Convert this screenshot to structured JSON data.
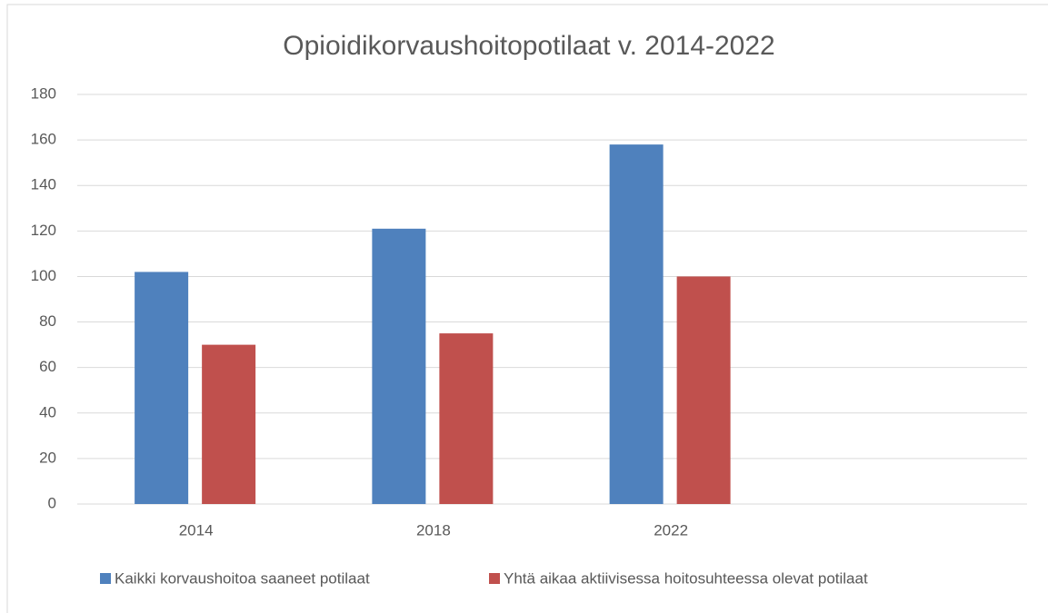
{
  "chart_data": {
    "type": "bar",
    "title": "Opioidikorvaushoitopotilaat v. 2014-2022",
    "categories": [
      "2014",
      "2018",
      "2022",
      null
    ],
    "series": [
      {
        "name": "Kaikki korvaushoitoa saaneet potilaat",
        "color": "#4f81bd",
        "values": [
          102,
          121,
          158,
          null
        ]
      },
      {
        "name": "Yhtä aikaa aktiivisessa hoitosuhteessa olevat potilaat",
        "color": "#c0504d",
        "values": [
          70,
          75,
          100,
          null
        ]
      }
    ],
    "ylim": [
      0,
      180
    ],
    "yticks": [
      0,
      20,
      40,
      60,
      80,
      100,
      120,
      140,
      160,
      180
    ],
    "grid": true,
    "legend": "bottom"
  }
}
